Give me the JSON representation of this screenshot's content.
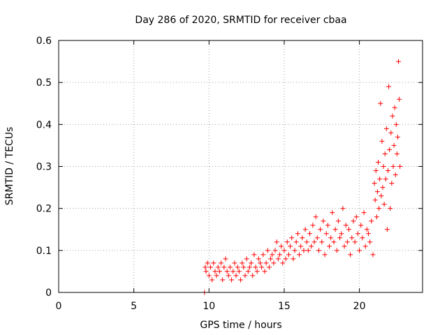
{
  "chart_data": {
    "type": "scatter",
    "title": "Day 286 of 2020, SRMTID for receiver cbaa",
    "xlabel": "GPS time / hours",
    "ylabel": "SRMTID / TECUs",
    "xlim": [
      0,
      24.2
    ],
    "ylim": [
      0,
      0.6
    ],
    "xticks": [
      0,
      5,
      10,
      15,
      20
    ],
    "xtick_labels": [
      "0",
      "5",
      "10",
      "15",
      "20"
    ],
    "yticks": [
      0,
      0.1,
      0.2,
      0.3,
      0.4,
      0.5,
      0.6
    ],
    "ytick_labels": [
      "0",
      "0.1",
      "0.2",
      "0.3",
      "0.4",
      "0.5",
      "0.6"
    ],
    "grid": true,
    "marker": "+",
    "color": "#ff0000",
    "series": [
      {
        "name": "SRMTID",
        "x": [
          9.7,
          9.75,
          9.8,
          9.9,
          10.0,
          10.1,
          10.2,
          10.3,
          10.4,
          10.5,
          10.6,
          10.7,
          10.8,
          10.9,
          11.0,
          11.1,
          11.2,
          11.3,
          11.4,
          11.5,
          11.6,
          11.7,
          11.8,
          11.9,
          12.0,
          12.1,
          12.2,
          12.3,
          12.4,
          12.5,
          12.6,
          12.7,
          12.8,
          12.9,
          13.0,
          13.1,
          13.2,
          13.3,
          13.4,
          13.5,
          13.6,
          13.7,
          13.8,
          13.9,
          14.0,
          14.1,
          14.2,
          14.3,
          14.4,
          14.5,
          14.6,
          14.7,
          14.8,
          14.9,
          15.0,
          15.1,
          15.2,
          15.3,
          15.4,
          15.5,
          15.6,
          15.7,
          15.8,
          15.9,
          16.0,
          16.1,
          16.2,
          16.3,
          16.4,
          16.5,
          16.6,
          16.7,
          16.8,
          16.9,
          17.0,
          17.1,
          17.2,
          17.3,
          17.4,
          17.5,
          17.6,
          17.7,
          17.8,
          17.9,
          18.0,
          18.1,
          18.2,
          18.3,
          18.4,
          18.5,
          18.6,
          18.7,
          18.8,
          18.9,
          19.0,
          19.1,
          19.2,
          19.3,
          19.4,
          19.5,
          19.6,
          19.7,
          19.8,
          19.9,
          20.0,
          20.1,
          20.2,
          20.3,
          20.4,
          20.5,
          20.6,
          20.7,
          20.8,
          20.9,
          21.0,
          21.05,
          21.1,
          21.15,
          21.2,
          21.25,
          21.3,
          21.35,
          21.4,
          21.45,
          21.5,
          21.55,
          21.6,
          21.65,
          21.7,
          21.75,
          21.8,
          21.85,
          21.9,
          21.95,
          22.0,
          22.05,
          22.1,
          22.15,
          22.2,
          22.25,
          22.3,
          22.35,
          22.4,
          22.45,
          22.5,
          22.55,
          22.6,
          22.65,
          22.7
        ],
        "y": [
          0.0,
          0.06,
          0.05,
          0.07,
          0.04,
          0.06,
          0.03,
          0.07,
          0.05,
          0.04,
          0.06,
          0.05,
          0.07,
          0.03,
          0.06,
          0.08,
          0.05,
          0.04,
          0.06,
          0.03,
          0.05,
          0.07,
          0.04,
          0.06,
          0.05,
          0.03,
          0.07,
          0.06,
          0.04,
          0.08,
          0.05,
          0.06,
          0.07,
          0.04,
          0.09,
          0.06,
          0.05,
          0.08,
          0.07,
          0.06,
          0.09,
          0.05,
          0.07,
          0.1,
          0.06,
          0.08,
          0.09,
          0.07,
          0.1,
          0.12,
          0.08,
          0.09,
          0.11,
          0.07,
          0.1,
          0.08,
          0.12,
          0.09,
          0.11,
          0.13,
          0.08,
          0.1,
          0.12,
          0.14,
          0.09,
          0.11,
          0.13,
          0.1,
          0.15,
          0.12,
          0.1,
          0.14,
          0.11,
          0.16,
          0.12,
          0.18,
          0.13,
          0.1,
          0.15,
          0.12,
          0.17,
          0.09,
          0.14,
          0.16,
          0.11,
          0.13,
          0.19,
          0.12,
          0.15,
          0.1,
          0.17,
          0.13,
          0.14,
          0.2,
          0.11,
          0.16,
          0.12,
          0.15,
          0.09,
          0.13,
          0.17,
          0.12,
          0.18,
          0.14,
          0.1,
          0.16,
          0.13,
          0.19,
          0.11,
          0.15,
          0.14,
          0.12,
          0.17,
          0.09,
          0.26,
          0.22,
          0.29,
          0.18,
          0.24,
          0.31,
          0.2,
          0.27,
          0.45,
          0.23,
          0.36,
          0.25,
          0.3,
          0.21,
          0.33,
          0.27,
          0.39,
          0.15,
          0.29,
          0.49,
          0.34,
          0.2,
          0.38,
          0.26,
          0.42,
          0.3,
          0.35,
          0.44,
          0.28,
          0.4,
          0.33,
          0.37,
          0.55,
          0.46,
          0.3
        ]
      }
    ]
  }
}
